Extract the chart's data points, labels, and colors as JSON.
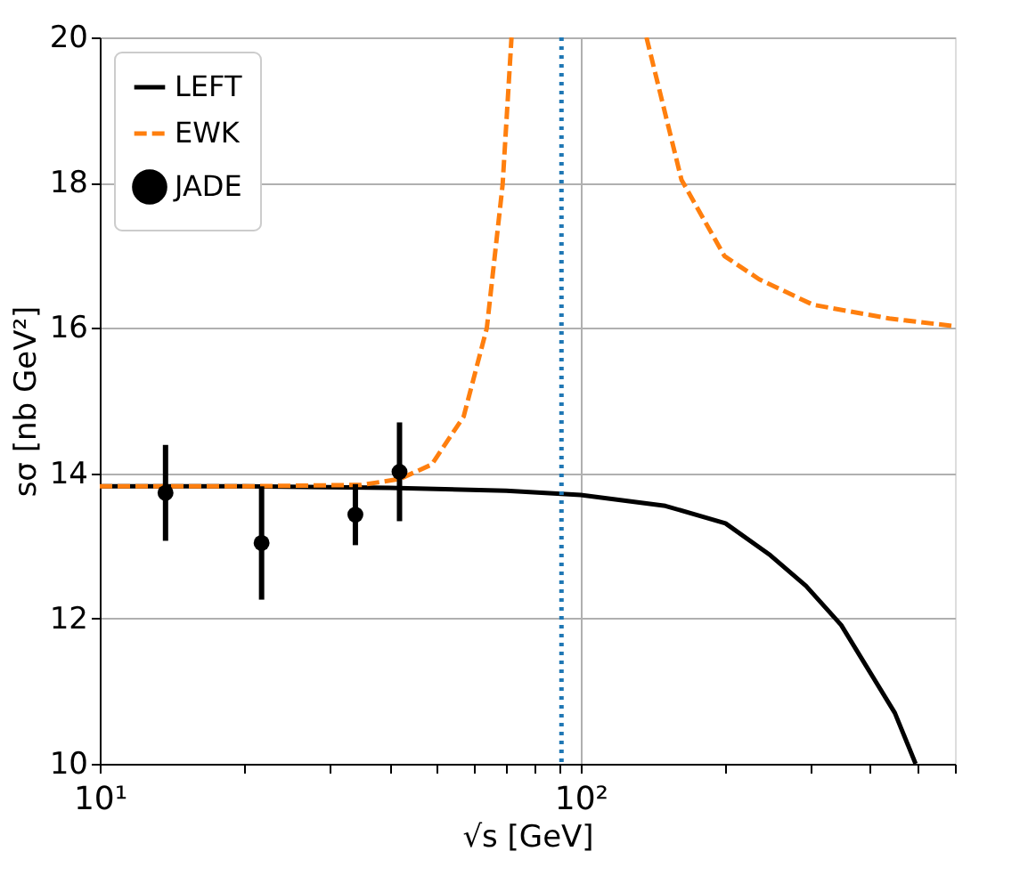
{
  "chart_data": {
    "type": "line",
    "xlabel": "√s [GeV]",
    "ylabel": "sσ [nb GeV²]",
    "log": "x",
    "xlim": [
      10,
      600
    ],
    "ylim": [
      10,
      20
    ],
    "xticks": [
      {
        "value": 10,
        "label": "10¹"
      },
      {
        "value": 20,
        "label": null
      },
      {
        "value": 30,
        "label": null
      },
      {
        "value": 40,
        "label": null
      },
      {
        "value": 50,
        "label": null
      },
      {
        "value": 60,
        "label": null
      },
      {
        "value": 70,
        "label": null
      },
      {
        "value": 80,
        "label": null
      },
      {
        "value": 90,
        "label": null
      },
      {
        "value": 100,
        "label": "10²"
      },
      {
        "value": 200,
        "label": null
      },
      {
        "value": 300,
        "label": null
      },
      {
        "value": 400,
        "label": null
      },
      {
        "value": 500,
        "label": null
      },
      {
        "value": 600,
        "label": null
      }
    ],
    "yticks": [
      10,
      12,
      14,
      16,
      18,
      20
    ],
    "grid": true,
    "legend": "top left",
    "ref_lines": [
      {
        "axis": "x",
        "value": 91.2,
        "color": "#1f77b4",
        "line_style": "dotted"
      }
    ],
    "series": [
      {
        "name": "LEFT",
        "color": "#000000",
        "line_style": "solid",
        "marker": "none",
        "x": [
          10,
          20,
          40,
          70,
          100,
          150,
          200,
          248,
          294,
          348,
          392,
          450,
          497
        ],
        "values": [
          13.82,
          13.82,
          13.8,
          13.76,
          13.7,
          13.55,
          13.31,
          12.87,
          12.45,
          11.91,
          11.35,
          10.7,
          10.0
        ]
      },
      {
        "name": "EWK",
        "color": "#ff7f0e",
        "line_style": "dashed",
        "marker": "none",
        "x": [
          10,
          20,
          35,
          42,
          49,
          57.1,
          63.8,
          68.8,
          71.8,
          100,
          137,
          162,
          199,
          235,
          304,
          438,
          590
        ],
        "values": [
          13.82,
          13.82,
          13.84,
          13.92,
          14.12,
          14.78,
          16.0,
          17.97,
          20.0,
          null,
          20.0,
          18.04,
          16.99,
          16.67,
          16.32,
          16.13,
          16.03
        ]
      },
      {
        "name": "JADE",
        "type": "scatter",
        "color": "#000000",
        "line_style": "none",
        "marker": "circle",
        "x": [
          13.7,
          21.7,
          34.0,
          42.0
        ],
        "values": [
          13.73,
          13.04,
          13.43,
          14.02
        ],
        "errors": [
          0.66,
          0.78,
          0.42,
          0.68
        ]
      }
    ]
  }
}
